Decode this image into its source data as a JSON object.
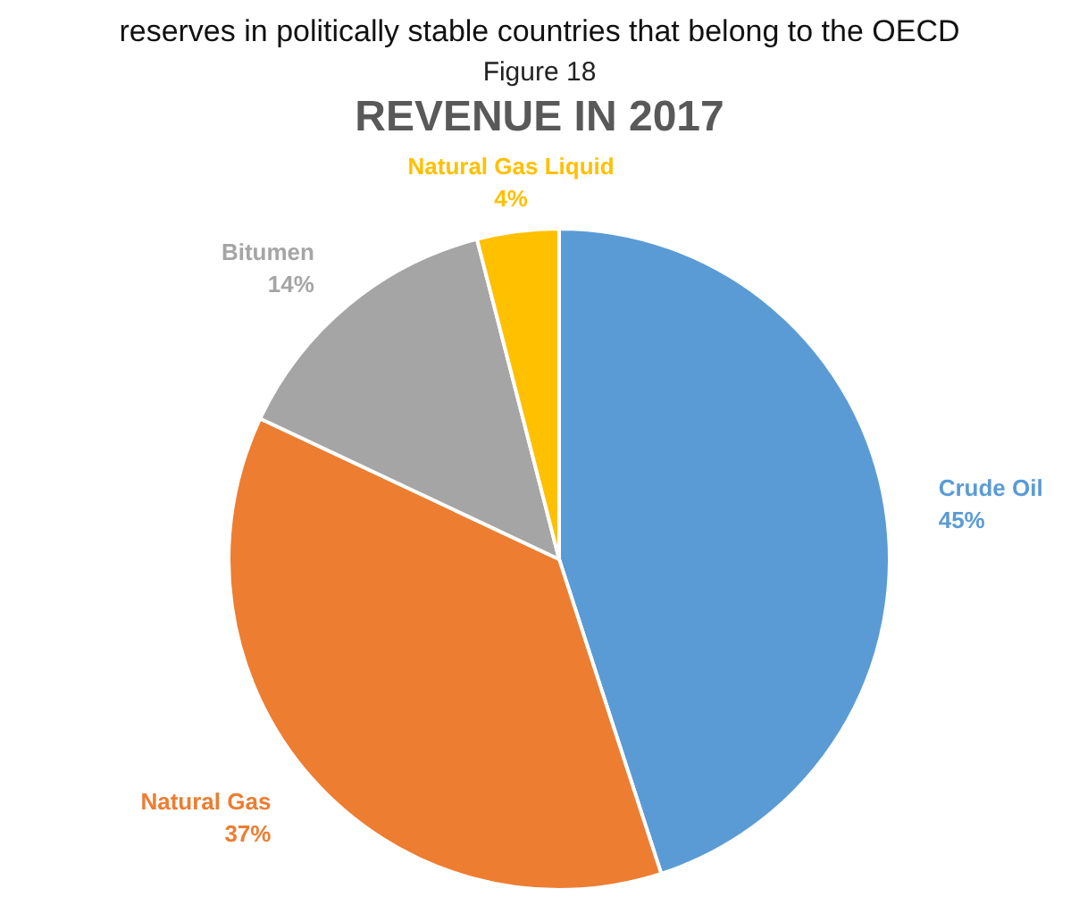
{
  "chart_data": {
    "type": "pie",
    "title": "REVENUE IN 2017",
    "subtitle": "Figure 18",
    "annotations": [
      "reserves in politically stable countries that belong to the OECD"
    ],
    "categories": [
      "Crude Oil",
      "Natural Gas",
      "Bitumen",
      "Natural Gas Liquid"
    ],
    "values": [
      45,
      37,
      14,
      4
    ],
    "colors": [
      "#5b9bd5",
      "#ed7d31",
      "#a5a5a5",
      "#ffc000"
    ],
    "value_labels": [
      "45%",
      "37%",
      "14%",
      "4%"
    ],
    "legend": false
  }
}
